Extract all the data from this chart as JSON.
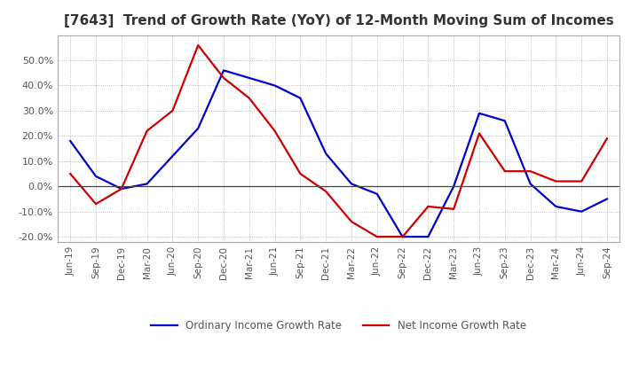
{
  "title": "[7643]  Trend of Growth Rate (YoY) of 12-Month Moving Sum of Incomes",
  "title_fontsize": 11,
  "ylim": [
    -22,
    60
  ],
  "yticks": [
    -20,
    -10,
    0,
    10,
    20,
    30,
    40,
    50
  ],
  "background_color": "#ffffff",
  "grid_color": "#aaaaaa",
  "ordinary_color": "#0000cc",
  "net_color": "#cc0000",
  "legend_labels": [
    "Ordinary Income Growth Rate",
    "Net Income Growth Rate"
  ],
  "x_labels": [
    "Jun-19",
    "Sep-19",
    "Dec-19",
    "Mar-20",
    "Jun-20",
    "Sep-20",
    "Dec-20",
    "Mar-21",
    "Jun-21",
    "Sep-21",
    "Dec-21",
    "Mar-22",
    "Jun-22",
    "Sep-22",
    "Dec-22",
    "Mar-23",
    "Jun-23",
    "Sep-23",
    "Dec-23",
    "Mar-24",
    "Jun-24",
    "Sep-24"
  ],
  "ordinary_y": [
    18,
    4,
    -1,
    1,
    12,
    23,
    46,
    43,
    40,
    35,
    13,
    1,
    -3,
    -20,
    -20,
    0,
    29,
    26,
    1,
    -8,
    -10,
    -5
  ],
  "net_y": [
    5,
    -7,
    -1,
    22,
    30,
    56,
    43,
    35,
    22,
    5,
    -2,
    -14,
    -20,
    -20,
    -8,
    -9,
    21,
    6,
    6,
    2,
    2,
    19
  ]
}
